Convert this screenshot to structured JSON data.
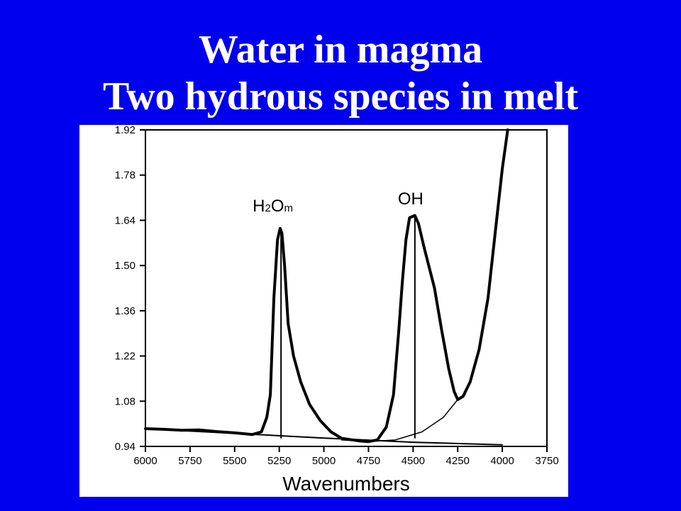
{
  "slide": {
    "title_line_1": "Water in magma",
    "title_line_2": "Two hydrous species in melt",
    "background_color": "#0000ee",
    "text_color": "#ffffff"
  },
  "chart_data": {
    "type": "line",
    "title": "",
    "xlabel": "Wavenumbers",
    "ylabel": "",
    "x_reversed": true,
    "xlim": [
      6000,
      3750
    ],
    "ylim": [
      0.94,
      1.92
    ],
    "x_ticks": [
      "6000",
      "5750",
      "5500",
      "5250",
      "5000",
      "4750",
      "4500",
      "4250",
      "4000",
      "3750"
    ],
    "y_ticks": [
      "1.92",
      "1.78",
      "1.64",
      "1.50",
      "1.36",
      "1.22",
      "1.08",
      "0.94"
    ],
    "annotations": [
      {
        "label_main": "H",
        "label_sub": "2",
        "label_rest": "O",
        "label_sub2": "m",
        "x": 5240,
        "peak_y": 1.615
      },
      {
        "label_main": "OH",
        "x": 4490,
        "peak_y": 1.655
      }
    ],
    "series": [
      {
        "values": [
          [
            6000,
            0.995
          ],
          [
            5900,
            0.993
          ],
          [
            5800,
            0.99
          ],
          [
            5700,
            0.991
          ],
          [
            5600,
            0.986
          ],
          [
            5500,
            0.982
          ],
          [
            5400,
            0.977
          ],
          [
            5350,
            0.985
          ],
          [
            5320,
            1.03
          ],
          [
            5300,
            1.1
          ],
          [
            5280,
            1.4
          ],
          [
            5260,
            1.58
          ],
          [
            5245,
            1.615
          ],
          [
            5235,
            1.6
          ],
          [
            5220,
            1.5
          ],
          [
            5200,
            1.32
          ],
          [
            5170,
            1.22
          ],
          [
            5130,
            1.14
          ],
          [
            5080,
            1.07
          ],
          [
            5020,
            1.02
          ],
          [
            4960,
            0.985
          ],
          [
            4900,
            0.965
          ],
          [
            4800,
            0.957
          ],
          [
            4750,
            0.955
          ],
          [
            4700,
            0.96
          ],
          [
            4650,
            1.0
          ],
          [
            4610,
            1.1
          ],
          [
            4580,
            1.3
          ],
          [
            4560,
            1.45
          ],
          [
            4540,
            1.58
          ],
          [
            4520,
            1.648
          ],
          [
            4490,
            1.655
          ],
          [
            4470,
            1.63
          ],
          [
            4440,
            1.56
          ],
          [
            4380,
            1.43
          ],
          [
            4340,
            1.3
          ],
          [
            4300,
            1.18
          ],
          [
            4270,
            1.11
          ],
          [
            4250,
            1.085
          ],
          [
            4220,
            1.095
          ],
          [
            4180,
            1.14
          ],
          [
            4130,
            1.24
          ],
          [
            4080,
            1.4
          ],
          [
            4040,
            1.6
          ],
          [
            4000,
            1.8
          ],
          [
            3970,
            1.92
          ]
        ]
      },
      {
        "values": [
          [
            6000,
            0.995
          ],
          [
            5000,
            0.966
          ],
          [
            4500,
            0.953
          ],
          [
            4000,
            0.945
          ]
        ]
      },
      {
        "values": [
          [
            4900,
            0.96
          ],
          [
            4750,
            0.955
          ],
          [
            4600,
            0.96
          ],
          [
            4450,
            0.985
          ],
          [
            4330,
            1.03
          ],
          [
            4250,
            1.085
          ]
        ]
      }
    ],
    "baseline_markers": [
      {
        "x": 5240,
        "y_top": 1.615
      },
      {
        "x": 4490,
        "y_top": 1.655
      }
    ]
  }
}
